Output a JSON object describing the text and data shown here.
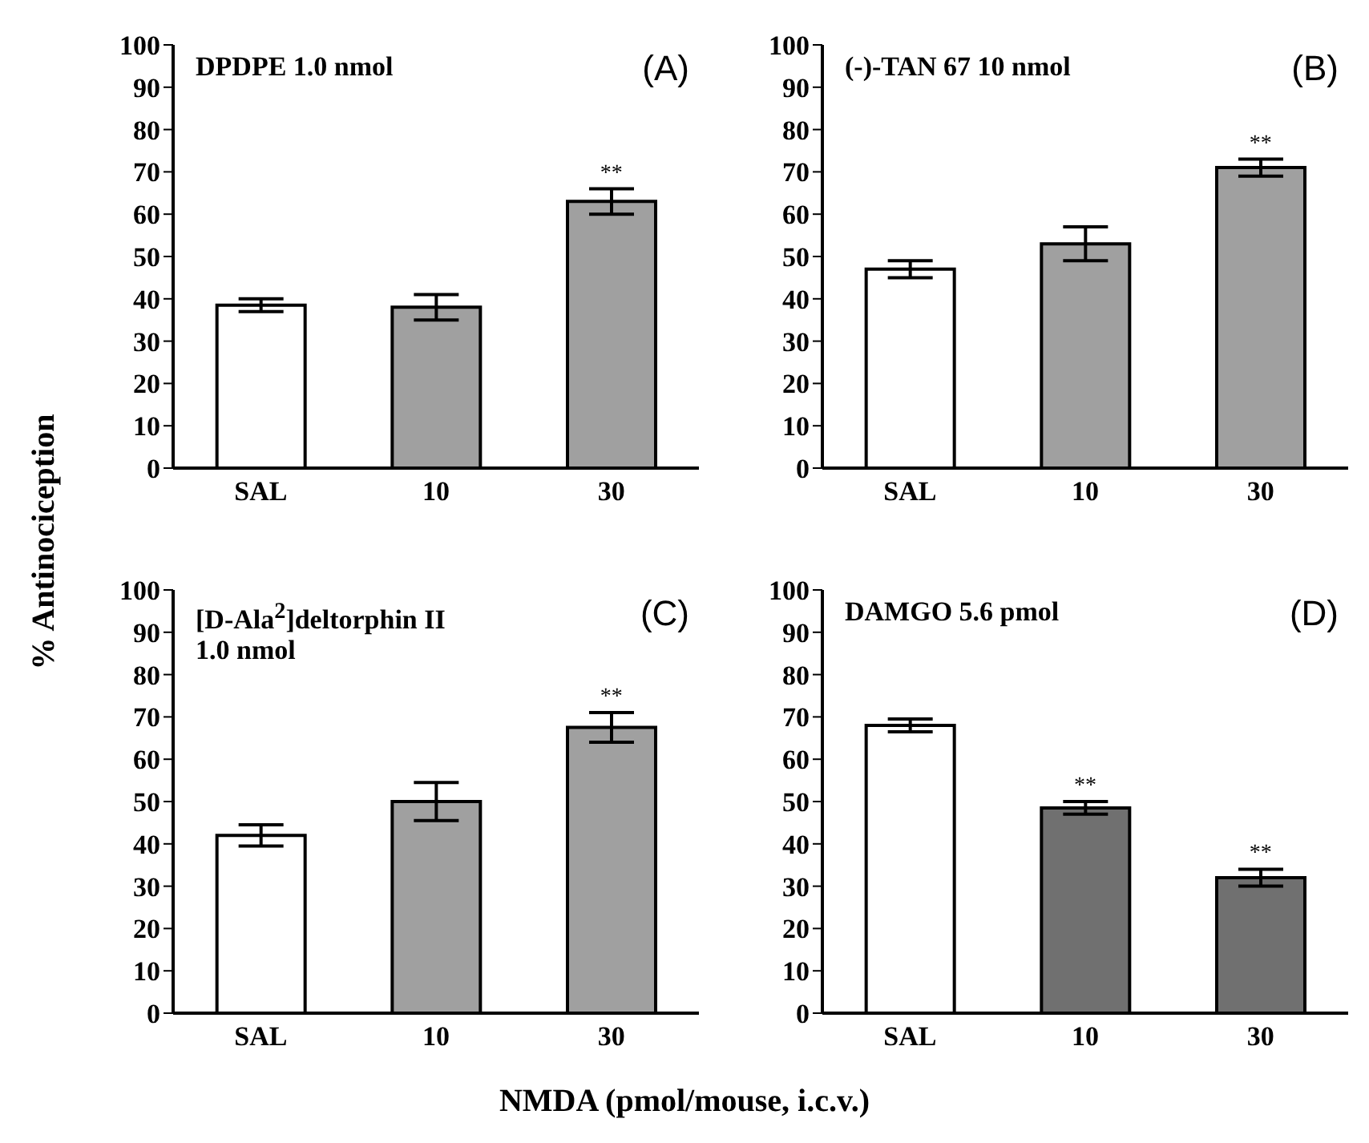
{
  "chart_data": [
    {
      "type": "bar",
      "title": "DPDPE 1.0 nmol",
      "ylabel": "% Antinociception",
      "categories": [
        "SAL",
        "10",
        "30"
      ],
      "values": [
        38.5,
        38,
        63
      ],
      "errors": [
        1.5,
        3,
        3
      ],
      "colors": [
        "#ffffff",
        "#a0a0a0",
        "#a0a0a0"
      ],
      "ylim": [
        0,
        100
      ],
      "yticks": [
        0,
        10,
        20,
        30,
        40,
        50,
        60,
        70,
        80,
        90,
        100
      ],
      "grid": false,
      "annotations": [
        "(A)",
        {
          "text": "**",
          "x": "30",
          "y": 66
        }
      ]
    },
    {
      "type": "bar",
      "title": "(-)-TAN 67 10 nmol",
      "categories": [
        "SAL",
        "10",
        "30"
      ],
      "values": [
        47,
        53,
        71
      ],
      "errors": [
        2,
        4,
        2
      ],
      "colors": [
        "#ffffff",
        "#a0a0a0",
        "#a0a0a0"
      ],
      "ylim": [
        0,
        100
      ],
      "yticks": [
        0,
        10,
        20,
        30,
        40,
        50,
        60,
        70,
        80,
        90,
        100
      ],
      "grid": false,
      "annotations": [
        "(B)",
        {
          "text": "**",
          "x": "30",
          "y": 73
        }
      ]
    },
    {
      "type": "bar",
      "title": "[D-Ala$^{2}$]deltorphin II\n1.0 nmol",
      "xlabel": "NMDA (pmol/mouse, i.c.v.)",
      "categories": [
        "SAL",
        "10",
        "30"
      ],
      "values": [
        42,
        50,
        67.5
      ],
      "errors": [
        2.5,
        4.5,
        3.5
      ],
      "colors": [
        "#ffffff",
        "#a0a0a0",
        "#a0a0a0"
      ],
      "ylim": [
        0,
        100
      ],
      "yticks": [
        0,
        10,
        20,
        30,
        40,
        50,
        60,
        70,
        80,
        90,
        100
      ],
      "grid": false,
      "annotations": [
        "(C)",
        {
          "text": "**",
          "x": "30",
          "y": 71
        }
      ]
    },
    {
      "type": "bar",
      "title": "DAMGO 5.6 pmol",
      "categories": [
        "SAL",
        "10",
        "30"
      ],
      "values": [
        68,
        48.5,
        32
      ],
      "errors": [
        1.5,
        1.5,
        2
      ],
      "colors": [
        "#ffffff",
        "#707070",
        "#707070"
      ],
      "ylim": [
        0,
        100
      ],
      "yticks": [
        0,
        10,
        20,
        30,
        40,
        50,
        60,
        70,
        80,
        90,
        100
      ],
      "grid": false,
      "annotations": [
        "(D)",
        {
          "text": "**",
          "x": "10",
          "y": 50
        },
        {
          "text": "**",
          "x": "30",
          "y": 34
        }
      ]
    }
  ]
}
